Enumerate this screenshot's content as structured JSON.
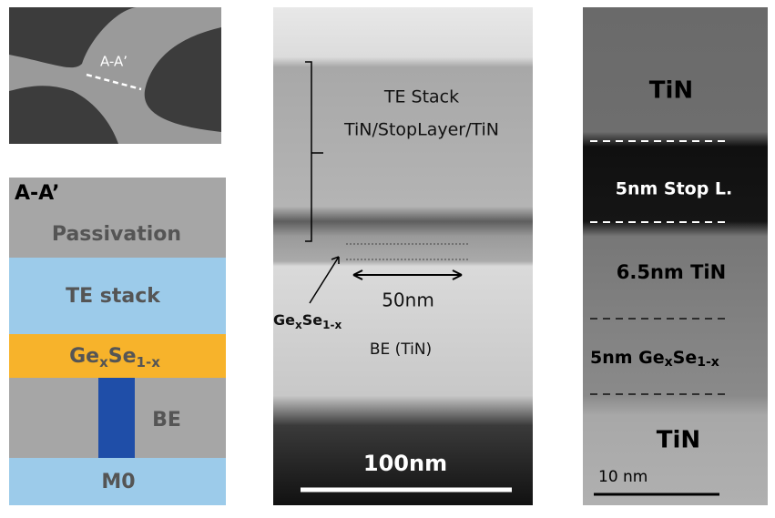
{
  "sem": {
    "label": "A-A’"
  },
  "schematic": {
    "section": "A-A’",
    "passivation": "Passivation",
    "te_stack": "TE stack",
    "gese": {
      "base": "Ge",
      "sub1": "x",
      "mid": "Se",
      "sub2": "1-x"
    },
    "be": "BE",
    "m0": "M0"
  },
  "tem": {
    "stack_title": "TE Stack",
    "stack_layers": "TiN/StopLayer/TiN",
    "width": "50nm",
    "gese": {
      "base": "Ge",
      "sub1": "x",
      "mid": "Se",
      "sub2": "1-x"
    },
    "be": "BE (TiN)",
    "scale": "100nm"
  },
  "hrtem": {
    "top": "TiN",
    "stop": "5nm Stop L.",
    "tin": "6.5nm TiN",
    "gese": {
      "prefix": "5nm Ge",
      "sub1": "x",
      "mid": "Se",
      "sub2": "1-x"
    },
    "bottom": "TiN",
    "scale": "10 nm"
  }
}
